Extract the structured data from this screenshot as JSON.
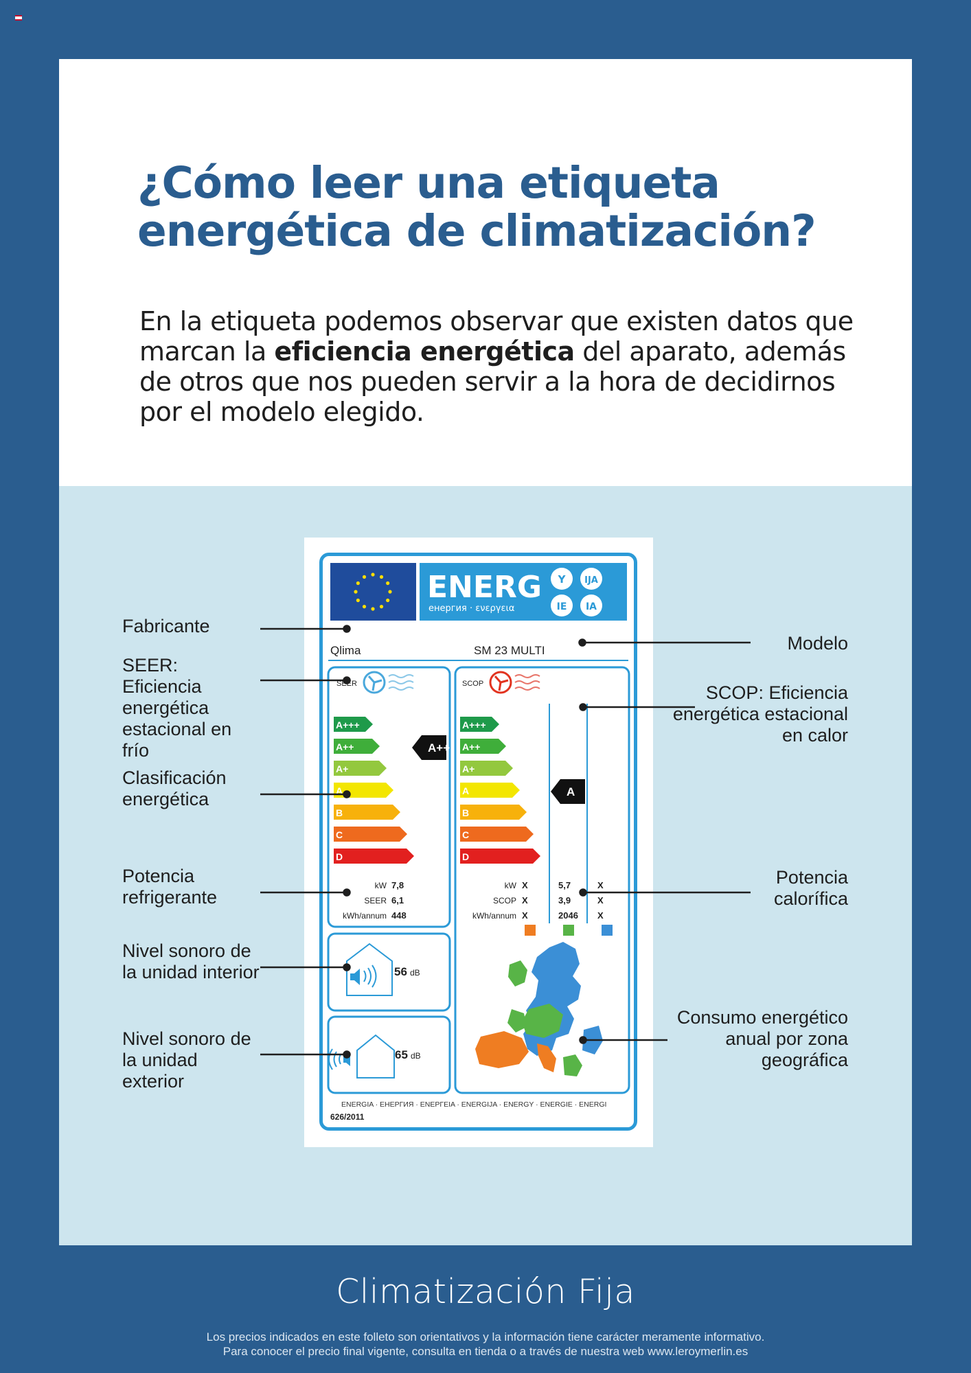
{
  "page": {
    "title": "¿Cómo leer una etiqueta energética de climatización?",
    "intro": {
      "before": "En la etiqueta podemos observar que existen datos que marcan la ",
      "bold": "eficiencia energética",
      "after": " del aparato, además de otros que nos pueden servir a la hora de decidirnos por el modelo elegido."
    }
  },
  "annotations": {
    "left": [
      "Fabricante",
      "SEER: Eficiencia energética estacional en frío",
      "Clasificación energética",
      "Potencia refrigerante",
      "Nivel sonoro de la unidad interior",
      "Nivel sonoro de la unidad exterior"
    ],
    "right": [
      "Modelo",
      "SCOP: Eficiencia energética estacional en calor",
      "Potencia calorífica",
      "Consumo energético anual por zona geográfica"
    ]
  },
  "label": {
    "header_word": "ENERG",
    "header_sub": "енергия · ενεργεια",
    "lang_codes": [
      "Y",
      "IJA",
      "IE",
      "IA"
    ],
    "manufacturer": "Qlima",
    "model": "SM 23 MULTI",
    "seer_tag": "SEER",
    "scop_tag": "SCOP",
    "classes": [
      "A+++",
      "A++",
      "A+",
      "A",
      "B",
      "C",
      "D"
    ],
    "class_colors": [
      "#1e9a4a",
      "#3fae3a",
      "#93c83e",
      "#f3e600",
      "#f7b10b",
      "#ee6a1e",
      "#e2201f"
    ],
    "cooling_class": "A++",
    "heating_class": "A",
    "cooling_rows": [
      {
        "unit": "kW",
        "value": "7,8"
      },
      {
        "unit": "SEER",
        "value": "6,1"
      },
      {
        "unit": "kWh/annum",
        "value": "448"
      }
    ],
    "heating_rows": [
      {
        "unit": "kW",
        "c1": "X",
        "c2": "5,7",
        "c3": "X"
      },
      {
        "unit": "SCOP",
        "c1": "X",
        "c2": "3,9",
        "c3": "X"
      },
      {
        "unit": "kWh/annum",
        "c1": "X",
        "c2": "2046",
        "c3": "X"
      }
    ],
    "zone_colors": [
      "#ef7d22",
      "#58b447",
      "#3b8fd6"
    ],
    "indoor_noise": "56",
    "outdoor_noise": "65",
    "noise_unit": "dB",
    "footer_words": "ENERGIA · ЕНЕРГИЯ · ΕΝΕΡΓΕΙΑ · ENERGIJA · ENERGY · ENERGIE · ENERGI",
    "regulation": "626/2011"
  },
  "footer": {
    "title": "Climatización Fija",
    "note_line1": "Los precios indicados en este folleto son orientativos y la información tiene carácter meramente informativo.",
    "note_line2": "Para conocer el precio final vigente, consulta en tienda o a través de nuestra web www.leroymerlin.es"
  }
}
